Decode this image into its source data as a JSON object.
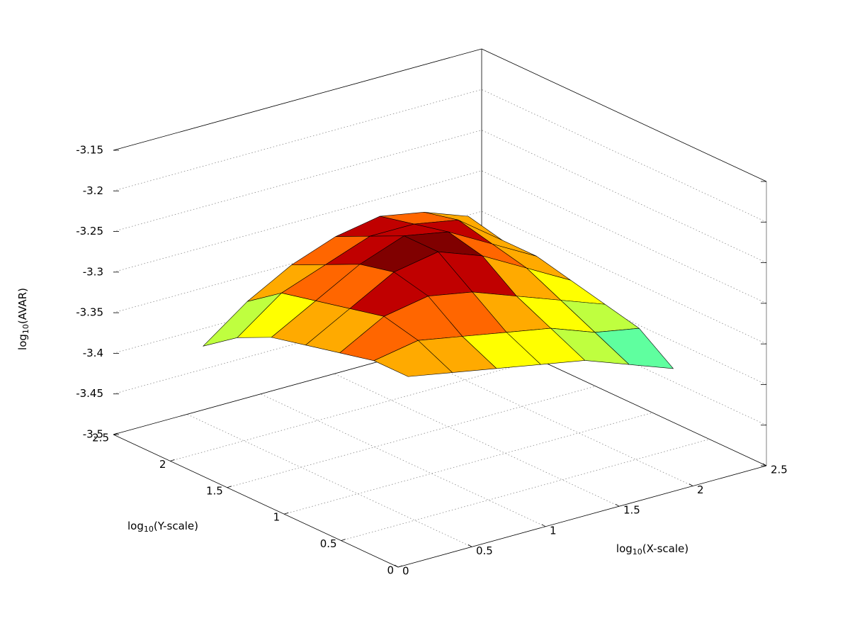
{
  "chart_data": {
    "type": "surface",
    "xlabel": [
      "log",
      "10",
      "(X-scale)"
    ],
    "ylabel": [
      "log",
      "10",
      "(Y-scale)"
    ],
    "zlabel": [
      "log",
      "10",
      "(AVAR)"
    ],
    "x": [
      0.3,
      0.6,
      0.9,
      1.2,
      1.5,
      1.8,
      2.1
    ],
    "y": [
      0.3,
      0.6,
      0.9,
      1.2,
      1.5,
      1.8,
      2.1
    ],
    "z": [
      [
        -3.3,
        -3.31,
        -3.32,
        -3.33,
        -3.34,
        -3.36,
        -3.38
      ],
      [
        -3.3,
        -3.29,
        -3.3,
        -3.31,
        -3.32,
        -3.34,
        -3.35
      ],
      [
        -3.31,
        -3.28,
        -3.27,
        -3.28,
        -3.3,
        -3.32,
        -3.34
      ],
      [
        -3.32,
        -3.29,
        -3.26,
        -3.25,
        -3.27,
        -3.3,
        -3.33
      ],
      [
        -3.33,
        -3.3,
        -3.27,
        -3.25,
        -3.26,
        -3.29,
        -3.32
      ],
      [
        -3.35,
        -3.31,
        -3.29,
        -3.27,
        -3.27,
        -3.28,
        -3.32
      ],
      [
        -3.38,
        -3.34,
        -3.31,
        -3.29,
        -3.28,
        -3.29,
        -3.31
      ]
    ],
    "xlim": [
      0,
      2.5
    ],
    "ylim": [
      0,
      2.5
    ],
    "zlim": [
      -3.5,
      -3.15
    ],
    "xticks": [
      0,
      0.5,
      1,
      1.5,
      2,
      2.5
    ],
    "yticks": [
      0,
      0.5,
      1,
      1.5,
      2,
      2.5
    ],
    "zticks": [
      -3.5,
      -3.45,
      -3.4,
      -3.35,
      -3.3,
      -3.25,
      -3.2,
      -3.15
    ],
    "grid": true,
    "palette": [
      "#00e5ff",
      "#5fff9f",
      "#bfff3f",
      "#ffff00",
      "#ffaa00",
      "#ff6600",
      "#c00000",
      "#800000"
    ]
  }
}
